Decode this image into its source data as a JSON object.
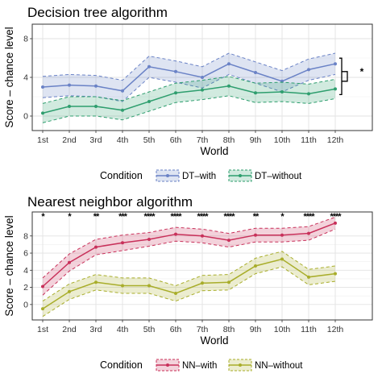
{
  "chart_data": [
    {
      "type": "line",
      "title": "Decision tree algorithm",
      "xlabel": "World",
      "ylabel": "Score – chance level",
      "categories": [
        "1st",
        "2nd",
        "3rd",
        "4th",
        "5th",
        "6th",
        "7th",
        "8th",
        "9th",
        "10th",
        "11th",
        "12th"
      ],
      "ylim": [
        -1.5,
        9.5
      ],
      "yticks": [
        0,
        4,
        8
      ],
      "grid": true,
      "legend_title": "Condition",
      "legend_position": "bottom",
      "series": [
        {
          "name": "DT–with",
          "color": "#6a82c6",
          "values": [
            3.0,
            3.2,
            3.1,
            2.6,
            5.1,
            4.6,
            4.0,
            5.4,
            4.5,
            3.6,
            4.8,
            5.4
          ],
          "lower": [
            1.9,
            2.1,
            2.0,
            1.5,
            4.0,
            3.5,
            2.9,
            4.3,
            3.4,
            2.5,
            3.7,
            4.3
          ],
          "upper": [
            4.1,
            4.3,
            4.2,
            3.7,
            6.2,
            5.7,
            5.1,
            6.5,
            5.6,
            4.7,
            5.9,
            6.5
          ]
        },
        {
          "name": "DT–without",
          "color": "#2e9e6e",
          "values": [
            0.3,
            1.0,
            1.0,
            0.6,
            1.5,
            2.4,
            2.7,
            3.1,
            2.4,
            2.5,
            2.3,
            2.8
          ],
          "lower": [
            -0.7,
            0.0,
            0.0,
            -0.4,
            0.5,
            1.4,
            1.7,
            2.1,
            1.4,
            1.5,
            1.3,
            1.8
          ],
          "upper": [
            1.3,
            2.0,
            2.0,
            1.6,
            2.5,
            3.4,
            3.7,
            4.1,
            3.4,
            3.5,
            3.3,
            3.8
          ]
        }
      ],
      "annotations": [
        {
          "type": "bracket",
          "at": "12th",
          "label": "*"
        }
      ]
    },
    {
      "type": "line",
      "title": "Nearest neighbor algorithm",
      "xlabel": "World",
      "ylabel": "Score – chance level",
      "categories": [
        "1st",
        "2nd",
        "3rd",
        "4th",
        "5th",
        "6th",
        "7th",
        "8th",
        "9th",
        "10th",
        "11th",
        "12th"
      ],
      "ylim": [
        -1.8,
        10.8
      ],
      "yticks": [
        0,
        2,
        4,
        6,
        8
      ],
      "grid": true,
      "legend_title": "Condition",
      "legend_position": "bottom",
      "significance": [
        "*",
        "*",
        "**",
        "***",
        "****",
        "****",
        "****",
        "****",
        "**",
        "*",
        "****",
        "****"
      ],
      "series": [
        {
          "name": "NN–with",
          "color": "#c8305a",
          "values": [
            2.1,
            4.9,
            6.7,
            7.2,
            7.6,
            8.2,
            8.0,
            7.5,
            8.1,
            8.1,
            8.3,
            9.5
          ],
          "lower": [
            1.1,
            3.9,
            5.8,
            6.3,
            6.8,
            7.4,
            7.2,
            6.7,
            7.3,
            7.3,
            7.5,
            8.8
          ],
          "upper": [
            3.1,
            5.9,
            7.6,
            8.1,
            8.4,
            9.0,
            8.8,
            8.3,
            8.9,
            8.9,
            9.1,
            10.2
          ]
        },
        {
          "name": "NN–without",
          "color": "#a8ad2a",
          "values": [
            -0.5,
            1.5,
            2.6,
            2.2,
            2.2,
            1.3,
            2.5,
            2.6,
            4.5,
            5.3,
            3.2,
            3.6
          ],
          "lower": [
            -1.4,
            0.6,
            1.7,
            1.3,
            1.3,
            0.4,
            1.6,
            1.7,
            3.6,
            4.4,
            2.3,
            2.7
          ],
          "upper": [
            0.4,
            2.4,
            3.5,
            3.1,
            3.1,
            2.2,
            3.4,
            3.5,
            5.4,
            6.2,
            4.1,
            4.5
          ]
        }
      ]
    }
  ]
}
